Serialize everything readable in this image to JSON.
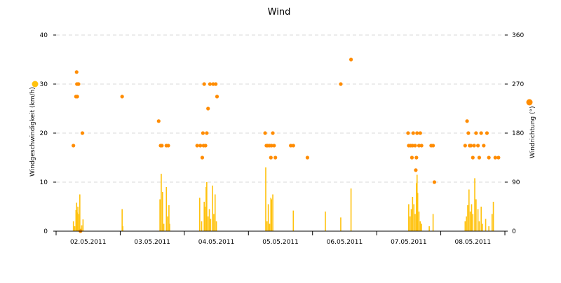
{
  "chart_data": {
    "type": "bar+scatter",
    "title": "Wind",
    "x_categories": [
      "02.05.2011",
      "03.05.2011",
      "04.05.2011",
      "05.05.2011",
      "06.05.2011",
      "07.05.2011",
      "08.05.2011"
    ],
    "x_range_days": [
      0,
      7
    ],
    "y_left": {
      "label": "Windgeschwindigkeit (km/h)",
      "min": 0,
      "max": 40,
      "ticks": [
        "0",
        "10",
        "20",
        "30",
        "40"
      ]
    },
    "y_right": {
      "label": "Windrichtung (°)",
      "min": 0,
      "max": 360,
      "ticks": [
        "0",
        "90",
        "180",
        "270",
        "360"
      ]
    },
    "colors": {
      "speed": "#ffc20e",
      "direction": "#ff8c00",
      "grid": "#d9d9d9",
      "axis": "#000000"
    },
    "series": [
      {
        "name": "Windgeschwindigkeit",
        "type": "bar",
        "axis": "left",
        "points": [
          [
            0.27,
            2.0
          ],
          [
            0.29,
            1.0
          ],
          [
            0.31,
            4.3
          ],
          [
            0.32,
            5.8
          ],
          [
            0.33,
            3.8
          ],
          [
            0.34,
            5.0
          ],
          [
            0.35,
            3.5
          ],
          [
            0.37,
            7.5
          ],
          [
            0.38,
            0.5
          ],
          [
            0.4,
            1.2
          ],
          [
            0.42,
            2.4
          ],
          [
            1.03,
            4.5
          ],
          [
            1.04,
            1.0
          ],
          [
            1.62,
            6.5
          ],
          [
            1.64,
            11.7
          ],
          [
            1.66,
            8.0
          ],
          [
            1.68,
            1.5
          ],
          [
            1.72,
            9.0
          ],
          [
            1.74,
            3.0
          ],
          [
            1.76,
            5.3
          ],
          [
            1.77,
            1.5
          ],
          [
            2.24,
            6.8
          ],
          [
            2.27,
            2.0
          ],
          [
            2.31,
            6.0
          ],
          [
            2.32,
            5.0
          ],
          [
            2.34,
            9.0
          ],
          [
            2.35,
            10.0
          ],
          [
            2.37,
            3.0
          ],
          [
            2.39,
            4.5
          ],
          [
            2.41,
            2.5
          ],
          [
            2.44,
            9.3
          ],
          [
            2.46,
            3.5
          ],
          [
            2.48,
            7.5
          ],
          [
            2.5,
            2.0
          ],
          [
            3.27,
            13.0
          ],
          [
            3.29,
            2.0
          ],
          [
            3.31,
            5.5
          ],
          [
            3.33,
            1.5
          ],
          [
            3.35,
            6.8
          ],
          [
            3.36,
            6.5
          ],
          [
            3.38,
            7.5
          ],
          [
            3.7,
            4.2
          ],
          [
            4.2,
            4.0
          ],
          [
            4.44,
            2.8
          ],
          [
            4.6,
            8.7
          ],
          [
            5.5,
            5.5
          ],
          [
            5.52,
            3.0
          ],
          [
            5.54,
            4.5
          ],
          [
            5.56,
            7.0
          ],
          [
            5.58,
            5.5
          ],
          [
            5.6,
            3.5
          ],
          [
            5.62,
            9.8
          ],
          [
            5.63,
            11.5
          ],
          [
            5.64,
            7.8
          ],
          [
            5.66,
            4.0
          ],
          [
            5.68,
            2.0
          ],
          [
            5.7,
            1.5
          ],
          [
            5.82,
            1.0
          ],
          [
            5.88,
            3.5
          ],
          [
            6.38,
            2.0
          ],
          [
            6.4,
            3.0
          ],
          [
            6.42,
            5.3
          ],
          [
            6.44,
            8.5
          ],
          [
            6.46,
            4.0
          ],
          [
            6.48,
            5.5
          ],
          [
            6.5,
            3.5
          ],
          [
            6.53,
            10.8
          ],
          [
            6.55,
            6.5
          ],
          [
            6.58,
            4.5
          ],
          [
            6.6,
            2.0
          ],
          [
            6.63,
            5.0
          ],
          [
            6.65,
            1.5
          ],
          [
            6.7,
            2.5
          ],
          [
            6.75,
            1.0
          ],
          [
            6.8,
            3.5
          ],
          [
            6.82,
            6.0
          ]
        ]
      },
      {
        "name": "Windrichtung",
        "type": "scatter",
        "axis": "right",
        "points": [
          [
            0.27,
            157
          ],
          [
            0.31,
            247
          ],
          [
            0.32,
            292
          ],
          [
            0.325,
            270
          ],
          [
            0.33,
            247
          ],
          [
            0.34,
            270
          ],
          [
            0.35,
            270
          ],
          [
            0.41,
            180
          ],
          [
            0.38,
            0
          ],
          [
            1.03,
            247
          ],
          [
            1.6,
            202
          ],
          [
            1.63,
            157
          ],
          [
            1.65,
            157
          ],
          [
            1.72,
            157
          ],
          [
            1.75,
            157
          ],
          [
            2.2,
            157
          ],
          [
            2.25,
            157
          ],
          [
            2.28,
            135
          ],
          [
            2.29,
            180
          ],
          [
            2.3,
            157
          ],
          [
            2.31,
            270
          ],
          [
            2.33,
            157
          ],
          [
            2.35,
            180
          ],
          [
            2.37,
            225
          ],
          [
            2.4,
            270
          ],
          [
            2.45,
            270
          ],
          [
            2.49,
            270
          ],
          [
            2.51,
            247
          ],
          [
            3.26,
            180
          ],
          [
            3.28,
            157
          ],
          [
            3.3,
            157
          ],
          [
            3.33,
            157
          ],
          [
            3.36,
            157
          ],
          [
            3.38,
            180
          ],
          [
            3.4,
            157
          ],
          [
            3.42,
            135
          ],
          [
            3.35,
            135
          ],
          [
            3.66,
            157
          ],
          [
            3.7,
            157
          ],
          [
            3.92,
            135
          ],
          [
            4.44,
            270
          ],
          [
            4.6,
            315
          ],
          [
            5.49,
            180
          ],
          [
            5.5,
            157
          ],
          [
            5.53,
            157
          ],
          [
            5.55,
            135
          ],
          [
            5.56,
            157
          ],
          [
            5.57,
            180
          ],
          [
            5.6,
            157
          ],
          [
            5.61,
            112
          ],
          [
            5.62,
            135
          ],
          [
            5.63,
            180
          ],
          [
            5.66,
            157
          ],
          [
            5.68,
            180
          ],
          [
            5.7,
            157
          ],
          [
            5.85,
            157
          ],
          [
            5.88,
            157
          ],
          [
            5.9,
            90
          ],
          [
            6.38,
            157
          ],
          [
            6.41,
            202
          ],
          [
            6.43,
            180
          ],
          [
            6.45,
            157
          ],
          [
            6.47,
            157
          ],
          [
            6.5,
            135
          ],
          [
            6.52,
            157
          ],
          [
            6.55,
            180
          ],
          [
            6.58,
            157
          ],
          [
            6.6,
            135
          ],
          [
            6.63,
            180
          ],
          [
            6.67,
            157
          ],
          [
            6.72,
            180
          ],
          [
            6.75,
            135
          ],
          [
            6.85,
            135
          ],
          [
            6.9,
            135
          ]
        ]
      }
    ]
  }
}
